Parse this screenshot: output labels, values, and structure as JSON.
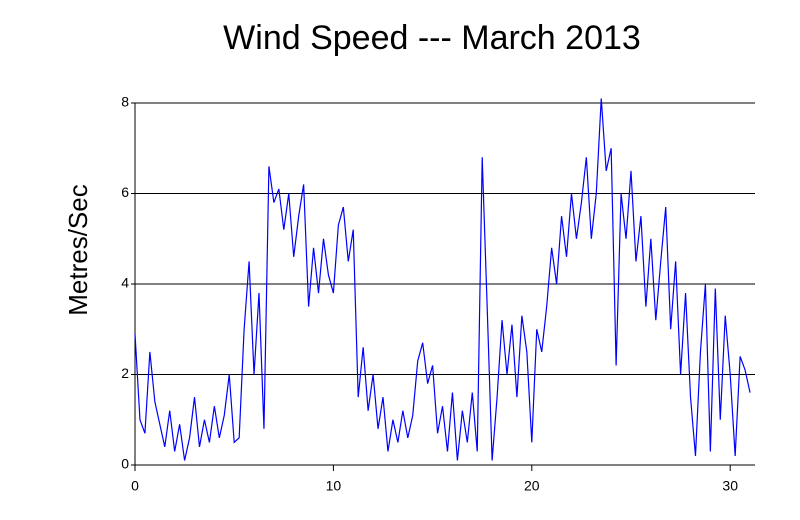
{
  "chart_data": {
    "type": "line",
    "title": "Wind Speed --- March 2013",
    "y_label": "Metres/Sec",
    "x": [
      0,
      0.25,
      0.5,
      0.75,
      1,
      1.25,
      1.5,
      1.75,
      2,
      2.25,
      2.5,
      2.75,
      3,
      3.25,
      3.5,
      3.75,
      4,
      4.25,
      4.5,
      4.75,
      5,
      5.25,
      5.5,
      5.75,
      6,
      6.25,
      6.5,
      6.75,
      7,
      7.25,
      7.5,
      7.75,
      8,
      8.25,
      8.5,
      8.75,
      9,
      9.25,
      9.5,
      9.75,
      10,
      10.25,
      10.5,
      10.75,
      11,
      11.25,
      11.5,
      11.75,
      12,
      12.25,
      12.5,
      12.75,
      13,
      13.25,
      13.5,
      13.75,
      14,
      14.25,
      14.5,
      14.75,
      15,
      15.25,
      15.5,
      15.75,
      16,
      16.25,
      16.5,
      16.75,
      17,
      17.25,
      17.5,
      17.75,
      18,
      18.25,
      18.5,
      18.75,
      19,
      19.25,
      19.5,
      19.75,
      20,
      20.25,
      20.5,
      20.75,
      21,
      21.25,
      21.5,
      21.75,
      22,
      22.25,
      22.5,
      22.75,
      23,
      23.25,
      23.5,
      23.75,
      24,
      24.25,
      24.5,
      24.75,
      25,
      25.25,
      25.5,
      25.75,
      26,
      26.25,
      26.5,
      26.75,
      27,
      27.25,
      27.5,
      27.75,
      28,
      28.25,
      28.5,
      28.75,
      29,
      29.25,
      29.5,
      29.75,
      30,
      30.25,
      30.5,
      30.75,
      31
    ],
    "series": [
      {
        "name": "Wind speed",
        "color": "#0000ff",
        "values": [
          2.9,
          1.0,
          0.7,
          2.5,
          1.4,
          0.9,
          0.4,
          1.2,
          0.3,
          0.9,
          0.1,
          0.6,
          1.5,
          0.4,
          1.0,
          0.5,
          1.3,
          0.6,
          1.1,
          2.0,
          0.5,
          0.6,
          3.0,
          4.5,
          2.0,
          3.8,
          0.8,
          6.6,
          5.8,
          6.1,
          5.2,
          6.0,
          4.6,
          5.5,
          6.2,
          3.5,
          4.8,
          3.8,
          5.0,
          4.2,
          3.8,
          5.3,
          5.7,
          4.5,
          5.2,
          1.5,
          2.6,
          1.2,
          2.0,
          0.8,
          1.5,
          0.3,
          1.0,
          0.5,
          1.2,
          0.6,
          1.1,
          2.3,
          2.7,
          1.8,
          2.2,
          0.7,
          1.3,
          0.3,
          1.6,
          0.1,
          1.2,
          0.5,
          1.6,
          0.3,
          6.8,
          3.5,
          0.1,
          1.5,
          3.2,
          2.0,
          3.1,
          1.5,
          3.3,
          2.5,
          0.5,
          3.0,
          2.5,
          3.5,
          4.8,
          4.0,
          5.5,
          4.6,
          6.0,
          5.0,
          5.8,
          6.8,
          5.0,
          6.0,
          8.1,
          6.5,
          7.0,
          2.2,
          6.0,
          5.0,
          6.5,
          4.5,
          5.5,
          3.5,
          5.0,
          3.2,
          4.5,
          5.7,
          3.0,
          4.5,
          2.0,
          3.8,
          1.5,
          0.2,
          2.5,
          4.0,
          0.3,
          3.9,
          1.0,
          3.3,
          2.0,
          0.2,
          2.4,
          2.1,
          1.6
        ]
      }
    ],
    "xlim": [
      0,
      31.25
    ],
    "ylim": [
      0,
      8
    ],
    "xticks": [
      0,
      10,
      20,
      30
    ],
    "yticks": [
      0,
      2,
      4,
      6,
      8
    ],
    "grid": true
  }
}
